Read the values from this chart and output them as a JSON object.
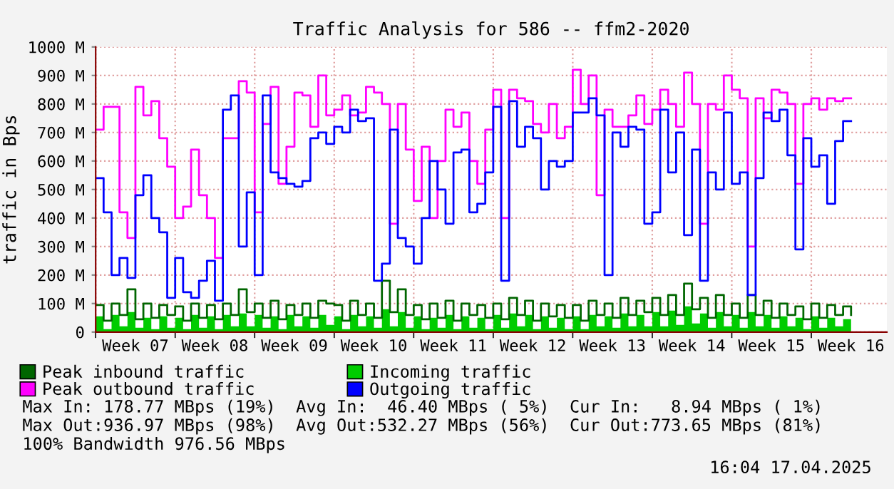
{
  "chart_data": {
    "type": "step",
    "title": "Traffic Analysis for 586 -- ffm2-2020",
    "ylabel": "traffic in Bps",
    "categories": [
      null,
      null,
      null,
      null,
      null,
      "Week 07",
      null,
      null,
      null,
      null,
      null,
      null,
      null,
      null,
      null,
      "Week 08",
      null,
      null,
      null,
      null,
      null,
      null,
      null,
      null,
      null,
      "Week 09",
      null,
      null,
      null,
      null,
      null,
      null,
      null,
      null,
      null,
      "Week 10",
      null,
      null,
      null,
      null,
      null,
      null,
      null,
      null,
      null,
      "Week 11",
      null,
      null,
      null,
      null,
      null,
      null,
      null,
      null,
      null,
      "Week 12",
      null,
      null,
      null,
      null,
      null,
      null,
      null,
      null,
      null,
      "Week 13",
      null,
      null,
      null,
      null,
      null,
      null,
      null,
      null,
      null,
      "Week 14",
      null,
      null,
      null,
      null,
      null,
      null,
      null,
      null,
      null,
      "Week 15",
      null,
      null,
      null,
      null,
      null,
      null,
      null,
      null,
      null,
      "Week 16"
    ],
    "series": [
      {
        "name": "Peak inbound traffic",
        "color": "#006600",
        "values": [
          95,
          40,
          100,
          60,
          150,
          45,
          100,
          50,
          95,
          60,
          90,
          40,
          100,
          50,
          95,
          45,
          100,
          60,
          150,
          70,
          100,
          50,
          110,
          45,
          95,
          60,
          100,
          50,
          110,
          100,
          95,
          40,
          110,
          60,
          100,
          50,
          180,
          70,
          150,
          60,
          95,
          45,
          100,
          50,
          110,
          40,
          100,
          60,
          95,
          50,
          100,
          45,
          120,
          60,
          110,
          40,
          100,
          55,
          95,
          50,
          95,
          40,
          110,
          60,
          100,
          50,
          120,
          60,
          110,
          70,
          120,
          60,
          130,
          60,
          170,
          80,
          120,
          50,
          130,
          60,
          100,
          50,
          130,
          60,
          110,
          50,
          100,
          60,
          90,
          45,
          100,
          50,
          95,
          60,
          90,
          60
        ]
      },
      {
        "name": "Incoming traffic",
        "type": "area",
        "color": "#00cc00",
        "values": [
          55,
          10,
          60,
          20,
          70,
          15,
          50,
          10,
          55,
          15,
          50,
          10,
          60,
          15,
          55,
          10,
          60,
          20,
          65,
          20,
          60,
          15,
          55,
          10,
          60,
          20,
          55,
          15,
          60,
          25,
          55,
          10,
          60,
          20,
          55,
          15,
          80,
          20,
          70,
          15,
          55,
          10,
          50,
          15,
          60,
          10,
          55,
          15,
          50,
          10,
          60,
          15,
          65,
          20,
          60,
          10,
          55,
          15,
          50,
          10,
          55,
          10,
          60,
          20,
          55,
          15,
          65,
          20,
          60,
          20,
          70,
          20,
          75,
          25,
          90,
          30,
          65,
          15,
          70,
          20,
          60,
          15,
          70,
          20,
          60,
          15,
          55,
          20,
          50,
          10,
          55,
          15,
          50,
          20,
          45,
          10
        ]
      },
      {
        "name": "Peak outbound traffic",
        "color": "#ff00ff",
        "values": [
          710,
          790,
          790,
          420,
          330,
          860,
          760,
          810,
          680,
          580,
          400,
          440,
          640,
          480,
          400,
          260,
          680,
          680,
          880,
          840,
          420,
          730,
          860,
          520,
          650,
          840,
          830,
          720,
          900,
          760,
          780,
          830,
          760,
          770,
          860,
          840,
          800,
          380,
          800,
          640,
          460,
          650,
          400,
          600,
          780,
          720,
          770,
          600,
          520,
          710,
          850,
          400,
          850,
          820,
          810,
          730,
          700,
          800,
          680,
          720,
          920,
          800,
          900,
          480,
          780,
          720,
          720,
          760,
          830,
          730,
          780,
          850,
          800,
          720,
          910,
          800,
          380,
          800,
          780,
          900,
          850,
          820,
          300,
          820,
          750,
          850,
          840,
          800,
          520,
          800,
          820,
          780,
          820,
          810,
          820,
          820
        ]
      },
      {
        "name": "Outgoing traffic",
        "color": "#0000ff",
        "values": [
          540,
          420,
          200,
          260,
          190,
          480,
          550,
          400,
          350,
          120,
          260,
          140,
          120,
          180,
          250,
          110,
          780,
          830,
          300,
          490,
          200,
          830,
          560,
          540,
          520,
          510,
          530,
          680,
          700,
          660,
          720,
          700,
          780,
          740,
          750,
          180,
          240,
          710,
          330,
          300,
          240,
          400,
          600,
          500,
          380,
          630,
          640,
          420,
          450,
          560,
          790,
          180,
          810,
          650,
          720,
          680,
          500,
          600,
          580,
          600,
          770,
          770,
          820,
          760,
          200,
          700,
          650,
          720,
          710,
          380,
          420,
          780,
          560,
          700,
          340,
          640,
          180,
          560,
          500,
          770,
          520,
          560,
          130,
          540,
          770,
          740,
          780,
          620,
          290,
          680,
          580,
          620,
          450,
          670,
          740,
          740
        ]
      }
    ],
    "ylim": [
      0,
      1000
    ],
    "yticks": [
      0,
      {
        "value": 100,
        "label": "100 M"
      },
      {
        "value": 200,
        "label": "200 M"
      },
      {
        "value": 300,
        "label": "300 M"
      },
      {
        "value": 400,
        "label": "400 M"
      },
      {
        "value": 500,
        "label": "500 M"
      },
      {
        "value": 600,
        "label": "600 M"
      },
      {
        "value": 700,
        "label": "700 M"
      },
      {
        "value": 800,
        "label": "800 M"
      },
      {
        "value": 900,
        "label": "900 M"
      },
      {
        "value": 1000,
        "label": "1000 M"
      }
    ],
    "grid": true,
    "legend": "bottom",
    "annotations": [
      "Max In: 178.77 MBps (19%)  Avg In:  46.40 MBps ( 5%)  Cur In:   8.94 MBps ( 1%)",
      "Max Out:936.97 MBps (98%)  Avg Out:532.27 MBps (56%)  Cur Out:773.65 MBps (81%)",
      "100% Bandwidth 976.56 MBps",
      "16:04 17.04.2025"
    ]
  }
}
